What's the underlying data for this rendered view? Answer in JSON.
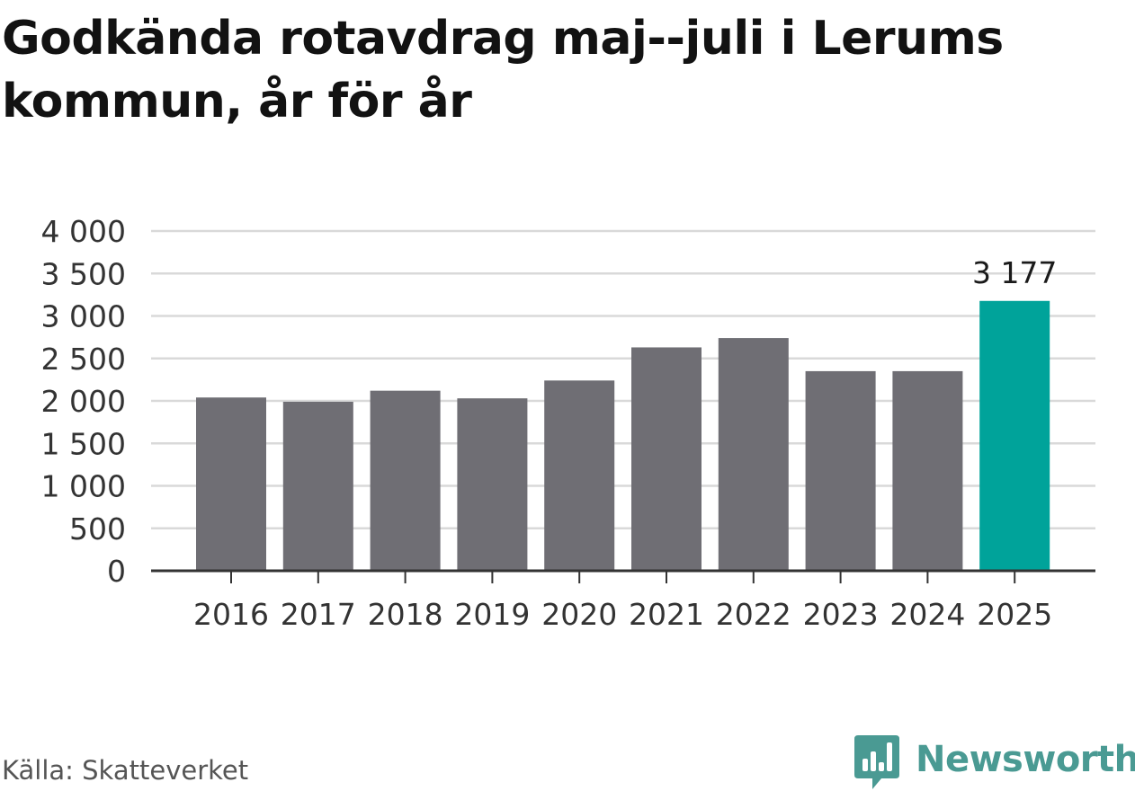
{
  "title": "Godkända rotavdrag maj--juli i Lerums kommun, år för år",
  "source": "Källa: Skatteverket",
  "brand": {
    "name": "Newsworthy",
    "color": "#4a9a93",
    "icon": "newsworthy-logo-icon"
  },
  "colors": {
    "bar": "#6f6e74",
    "highlight": "#00a39a",
    "grid": "#d9d9d9",
    "axis": "#333333"
  },
  "chart_data": {
    "type": "bar",
    "title": "Godkända rotavdrag maj--juli i Lerums kommun, år för år",
    "xlabel": "",
    "ylabel": "",
    "categories": [
      "2016",
      "2017",
      "2018",
      "2019",
      "2020",
      "2021",
      "2022",
      "2023",
      "2024",
      "2025"
    ],
    "values": [
      2040,
      1990,
      2120,
      2030,
      2240,
      2630,
      2740,
      2350,
      2350,
      3177
    ],
    "highlight_index": 9,
    "value_labels": [
      {
        "index": 9,
        "text": "3 177"
      }
    ],
    "ylim": [
      0,
      4000
    ],
    "yticks": [
      0,
      500,
      1000,
      1500,
      2000,
      2500,
      3000,
      3500,
      4000
    ],
    "ytick_labels": [
      "0",
      "500",
      "1 000",
      "1 500",
      "2 000",
      "2 500",
      "3 000",
      "3 500",
      "4 000"
    ],
    "grid": true,
    "legend": "none"
  }
}
